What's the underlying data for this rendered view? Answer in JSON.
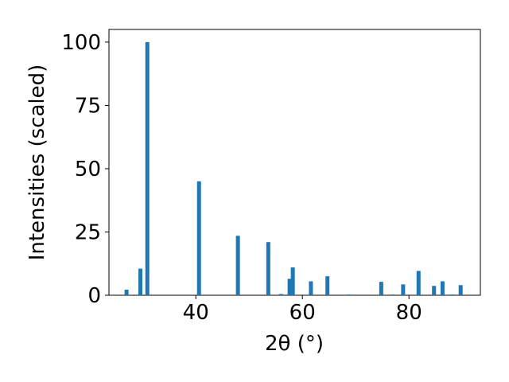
{
  "chart_data": {
    "type": "bar",
    "xlabel": "2θ (°)",
    "ylabel": "Intensities (scaled)",
    "x": [
      27.0,
      29.6,
      30.9,
      40.6,
      47.9,
      53.6,
      56.0,
      57.6,
      58.2,
      61.6,
      64.7,
      68.7,
      74.8,
      76.9,
      78.9,
      81.8,
      84.7,
      86.3,
      88.1,
      89.7
    ],
    "values": [
      2.2,
      10.5,
      100,
      45,
      23.5,
      21,
      0.5,
      6.5,
      11,
      5.5,
      7.5,
      0.3,
      5.3,
      0.3,
      4.3,
      9.6,
      3.7,
      5.5,
      0.3,
      4
    ],
    "color": "#1f77b4",
    "xlim": [
      23.7,
      93.4
    ],
    "xticks": [
      40,
      60,
      80
    ],
    "ylim": [
      0,
      105
    ],
    "yticks": [
      0,
      25,
      50,
      75,
      100
    ]
  }
}
